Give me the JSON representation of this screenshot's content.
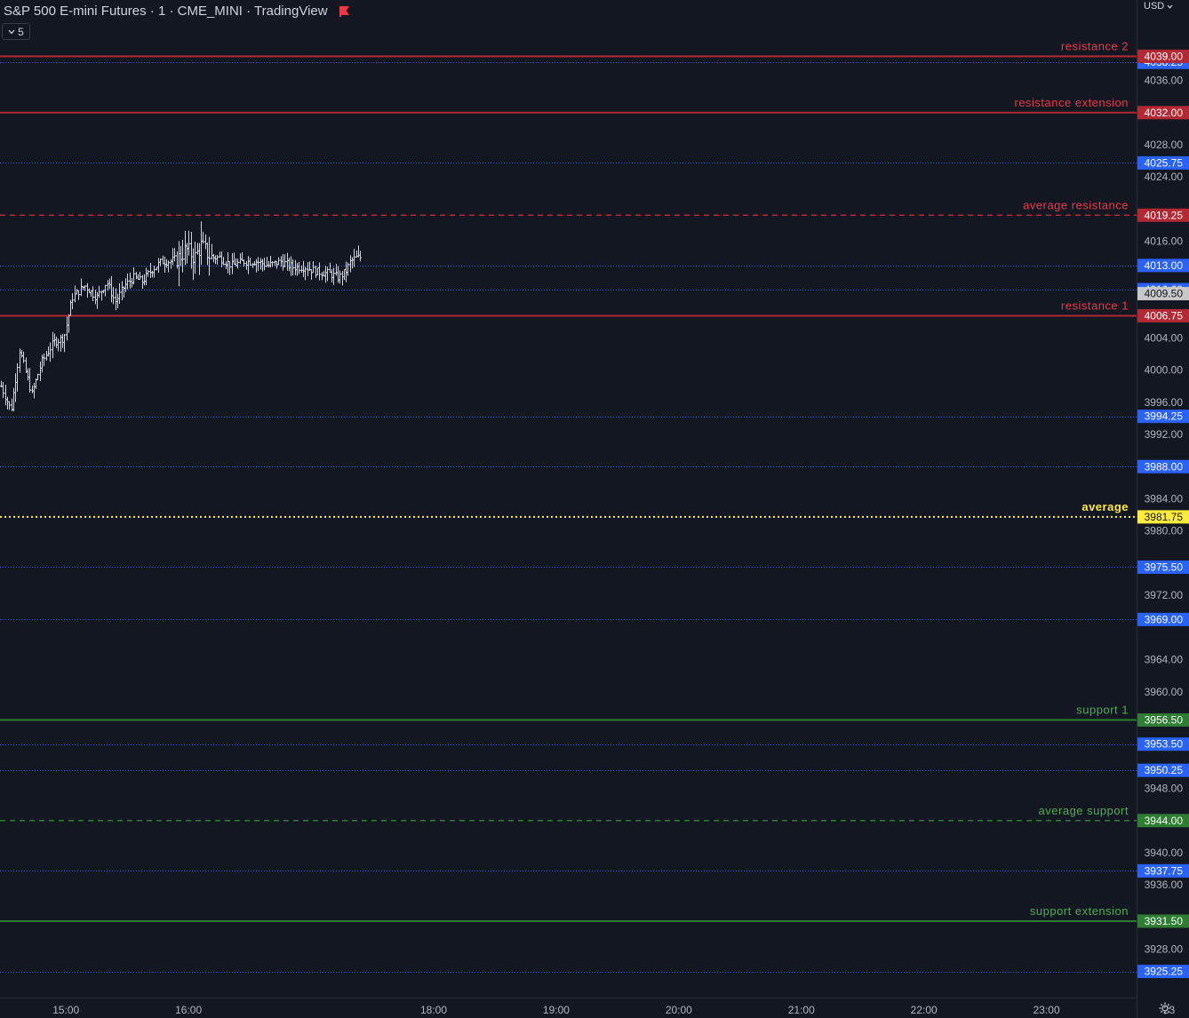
{
  "header": {
    "title": "S&P 500 E-mini Futures · 1 · CME_MINI · TradingView",
    "interval_badge": "5",
    "currency": "USD"
  },
  "colors": {
    "background": "#131722",
    "text": "#b2b5be",
    "resistance": "#b22833",
    "resistance_label": "#f23645",
    "support": "#2e7d32",
    "support_label": "#4caf50",
    "average": "#ffeb3b",
    "dotted_level": "#2962ff",
    "price_label_bg": "#2962ff",
    "last_price_bg": "#c8c8c8"
  },
  "icons": {
    "flag": "flag-icon",
    "chevron": "chevron-down-icon",
    "settings": "gear-icon"
  },
  "chart_data": {
    "type": "ohlc",
    "title": "S&P 500 E-mini Futures",
    "ylim": [
      3922.0,
      4046.0
    ],
    "yticks": [
      "4036.00",
      "4028.00",
      "4024.00",
      "4016.00",
      "4004.00",
      "4000.00",
      "3996.00",
      "3992.00",
      "3984.00",
      "3980.00",
      "3972.00",
      "3964.00",
      "3960.00",
      "3948.00",
      "3940.00",
      "3936.00",
      "3928.00"
    ],
    "xticks": [
      {
        "label": "15:00",
        "t": 15.0
      },
      {
        "label": "16:00",
        "t": 16.0
      },
      {
        "label": "18:00",
        "t": 18.0
      },
      {
        "label": "19:00",
        "t": 19.0
      },
      {
        "label": "20:00",
        "t": 20.0
      },
      {
        "label": "21:00",
        "t": 21.0
      },
      {
        "label": "22:00",
        "t": 22.0
      },
      {
        "label": "23:00",
        "t": 23.0
      },
      {
        "label": "23",
        "t": 24.0
      }
    ],
    "xlim": [
      14.462,
      23.735
    ],
    "named_levels": [
      {
        "name": "resistance 2",
        "value": 4039.0,
        "kind": "resistance",
        "style": "solid"
      },
      {
        "name": "resistance extension",
        "value": 4032.0,
        "kind": "resistance",
        "style": "solid"
      },
      {
        "name": "average resistance",
        "value": 4019.25,
        "kind": "resistance",
        "style": "dashed"
      },
      {
        "name": "resistance 1",
        "value": 4006.75,
        "kind": "resistance",
        "style": "solid"
      },
      {
        "name": "average",
        "value": 3981.75,
        "kind": "average",
        "style": "dotted"
      },
      {
        "name": "support 1",
        "value": 3956.5,
        "kind": "support",
        "style": "solid"
      },
      {
        "name": "average support",
        "value": 3944.0,
        "kind": "support",
        "style": "dashed"
      },
      {
        "name": "support extension",
        "value": 3931.5,
        "kind": "support",
        "style": "solid"
      }
    ],
    "dotted_levels": [
      4038.25,
      4025.75,
      4013.0,
      4010.0,
      3994.25,
      3988.0,
      3975.5,
      3969.0,
      3953.5,
      3950.25,
      3937.75,
      3925.25
    ],
    "last_price": 4009.5,
    "series_path": [
      {
        "t": 14.47,
        "v": 3998.0
      },
      {
        "t": 14.55,
        "v": 3995.0
      },
      {
        "t": 14.62,
        "v": 4002.5
      },
      {
        "t": 14.72,
        "v": 3997.0
      },
      {
        "t": 14.8,
        "v": 4001.0
      },
      {
        "t": 14.9,
        "v": 4003.5
      },
      {
        "t": 14.98,
        "v": 4004.0
      },
      {
        "t": 15.05,
        "v": 4009.0
      },
      {
        "t": 15.15,
        "v": 4010.5
      },
      {
        "t": 15.25,
        "v": 4009.0
      },
      {
        "t": 15.33,
        "v": 4011.0
      },
      {
        "t": 15.4,
        "v": 4008.5
      },
      {
        "t": 15.48,
        "v": 4010.5
      },
      {
        "t": 15.55,
        "v": 4011.5
      },
      {
        "t": 15.62,
        "v": 4011.0
      },
      {
        "t": 15.7,
        "v": 4012.5
      },
      {
        "t": 15.78,
        "v": 4013.5
      },
      {
        "t": 15.85,
        "v": 4013.5
      },
      {
        "t": 15.92,
        "v": 4014.0
      },
      {
        "t": 15.98,
        "v": 4015.0
      },
      {
        "t": 16.05,
        "v": 4014.0
      },
      {
        "t": 16.1,
        "v": 4015.5
      },
      {
        "t": 16.18,
        "v": 4014.0
      },
      {
        "t": 16.25,
        "v": 4014.0
      },
      {
        "t": 16.35,
        "v": 4013.0
      },
      {
        "t": 16.45,
        "v": 4013.5
      },
      {
        "t": 16.55,
        "v": 4013.5
      },
      {
        "t": 16.65,
        "v": 4013.0
      },
      {
        "t": 16.75,
        "v": 4013.5
      },
      {
        "t": 16.85,
        "v": 4012.8
      },
      {
        "t": 16.95,
        "v": 4012.8
      },
      {
        "t": 17.05,
        "v": 4012.2
      },
      {
        "t": 17.15,
        "v": 4012.0
      },
      {
        "t": 17.22,
        "v": 4011.5
      },
      {
        "t": 17.28,
        "v": 4012.2
      },
      {
        "t": 17.32,
        "v": 4013.5
      },
      {
        "t": 17.37,
        "v": 4014.0
      },
      {
        "t": 17.4,
        "v": 4014.0
      }
    ]
  }
}
